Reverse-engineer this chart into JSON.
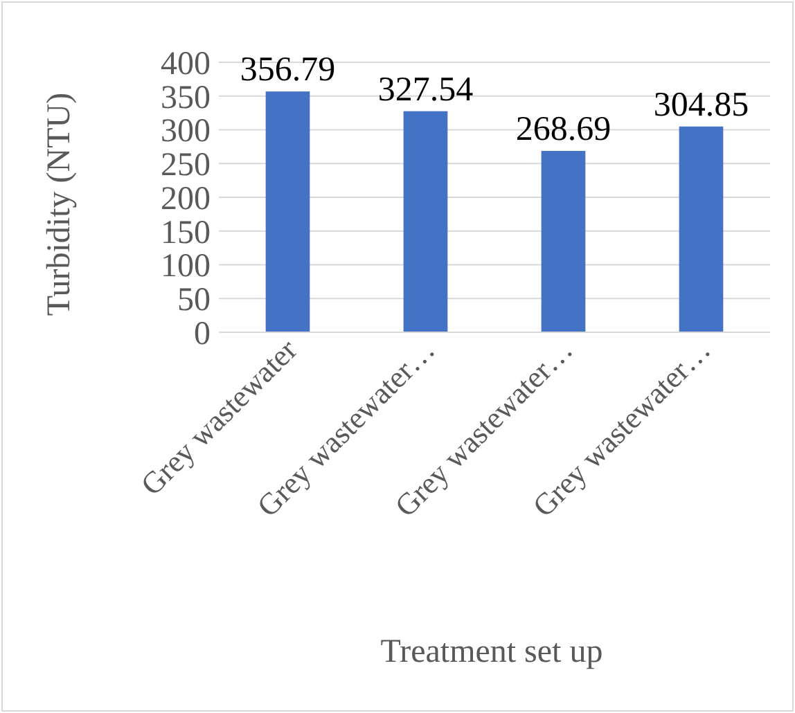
{
  "chart_data": {
    "type": "bar",
    "xlabel": "Treatment set up",
    "ylabel": "Turbidity (NTU)",
    "categories": [
      "Grey wastewater",
      "Grey wastewater…",
      "Grey wastewater…",
      "Grey wastewater…"
    ],
    "values": [
      356.79,
      327.54,
      268.69,
      304.85
    ],
    "color": "#4472c4",
    "ylim": [
      0,
      400
    ],
    "yticks": [
      0,
      50,
      100,
      150,
      200,
      250,
      300,
      350,
      400
    ],
    "grid": "y",
    "data_labels": true
  }
}
